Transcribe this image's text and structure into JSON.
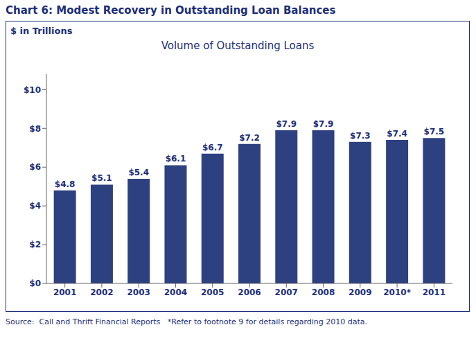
{
  "chart_data": {
    "type": "bar",
    "title": "Chart 6: Modest Recovery in Outstanding Loan Balances",
    "subtitle": "Volume of Outstanding Loans",
    "ylabel": "$ in Trillions",
    "footnote": "Source:  Call and Thrift Financial Reports   *Refer to footnote 9 for details regarding 2010 data.",
    "categories": [
      "2001",
      "2002",
      "2003",
      "2004",
      "2005",
      "2006",
      "2007",
      "2008",
      "2009",
      "2010*",
      "2011"
    ],
    "values": [
      4.8,
      5.1,
      5.4,
      6.1,
      6.7,
      7.2,
      7.9,
      7.9,
      7.3,
      7.4,
      7.5
    ],
    "value_labels": [
      "$4.8",
      "$5.1",
      "$5.4",
      "$6.1",
      "$6.7",
      "$7.2",
      "$7.9",
      "$7.9",
      "$7.3",
      "$7.4",
      "$7.5"
    ],
    "color": "#2D4080",
    "ylim": [
      0,
      10.8
    ],
    "yticks": [
      {
        "value": 0,
        "label": "$0"
      },
      {
        "value": 2,
        "label": "$2"
      },
      {
        "value": 4,
        "label": "$4"
      },
      {
        "value": 6,
        "label": "$6"
      },
      {
        "value": 8,
        "label": "$8"
      },
      {
        "value": 10,
        "label": "$10"
      }
    ],
    "grid": false,
    "data_labels": true
  }
}
